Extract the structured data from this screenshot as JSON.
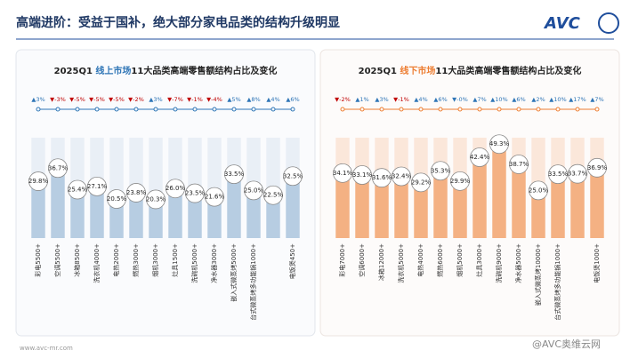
{
  "header": {
    "title": "高端进阶：受益于国补，绝大部分家电品类的结构升级明显",
    "logo": "AVC",
    "footer": "www.avc-mr.com",
    "watermark": "@AVC奥维云网"
  },
  "chart_data": [
    {
      "type": "bar",
      "title_prefix": "2025Q1 ",
      "title_highlight": "线上市场",
      "title_rest": "11大品类高端零售额结构占比及变化",
      "color": "#b7cde2",
      "band_color": "#e9eff6",
      "highlight_color": "#2e75b6",
      "ylim": [
        0,
        55
      ],
      "categories": [
        "彩电5500+",
        "空调5500+",
        "冰箱8500+",
        "洗衣机4000+",
        "电热2000+",
        "燃热3000+",
        "烟机3000+",
        "灶具1500+",
        "洗碗机5000+",
        "净水器3000+",
        "嵌入式微蒸烤5000+",
        "台式微蒸烤多功能锅1000+",
        null,
        "电饭煲450+"
      ],
      "values": [
        29.8,
        36.7,
        25.4,
        27.1,
        20.5,
        23.8,
        20.3,
        26.0,
        23.5,
        21.6,
        33.5,
        25.0,
        22.5,
        32.5
      ],
      "value_labels": [
        "29.8%",
        "36.7%",
        "25.4%",
        "27.1%",
        "20.5%",
        "23.8%",
        "20.3%",
        "26.0%",
        "23.5%",
        "21.6%",
        "33.5%",
        "25.0%",
        "22.5%",
        "32.5%"
      ],
      "changes": [
        3,
        -3,
        -5,
        -5,
        -5,
        -2,
        3,
        -7,
        -1,
        -4,
        5,
        8,
        4,
        6
      ],
      "change_labels": [
        "▲3%",
        "▼-3%",
        "▼-5%",
        "▼-5%",
        "▼-5%",
        "▼-2%",
        "▲3%",
        "▼-7%",
        "▼-1%",
        "▼-4%",
        "▲5%",
        "▲8%",
        "▲4%",
        "▲6%"
      ]
    },
    {
      "type": "bar",
      "title_prefix": "2025Q1 ",
      "title_highlight": "线下市场",
      "title_rest": "11大品类高端零售额结构占比及变化",
      "color": "#f4b183",
      "band_color": "#fbe7da",
      "highlight_color": "#ed7d31",
      "ylim": [
        0,
        55
      ],
      "categories": [
        "彩电7000+",
        "空调6000+",
        "冰箱12000+",
        "洗衣机5000+",
        "电热4000+",
        "燃热6000+",
        "烟机5000+",
        "灶具3000+",
        "洗碗机9000+",
        "净水器5000+",
        "嵌入式微蒸烤10000+",
        "台式微蒸烤多功能锅1000+",
        null,
        "电饭煲1000+"
      ],
      "values": [
        34.1,
        33.1,
        31.6,
        32.4,
        29.2,
        35.3,
        29.9,
        42.4,
        49.3,
        38.7,
        25.0,
        33.5,
        33.7,
        36.9
      ],
      "value_labels": [
        "34.1%",
        "33.1%",
        "31.6%",
        "32.4%",
        "29.2%",
        "35.3%",
        "29.9%",
        "42.4%",
        "49.3%",
        "38.7%",
        "25.0%",
        "33.5%",
        "33.7%",
        "36.9%"
      ],
      "changes": [
        -2,
        1,
        3,
        -1,
        4,
        6,
        0,
        7,
        10,
        6,
        2,
        10,
        17,
        7
      ],
      "change_labels": [
        "▼-2%",
        "▲1%",
        "▲3%",
        "▼-1%",
        "▲4%",
        "▲6%",
        "▼-0%",
        "▲7%",
        "▲10%",
        "▲6%",
        "▲2%",
        "▲10%",
        "▲17%",
        "▲7%"
      ]
    }
  ]
}
